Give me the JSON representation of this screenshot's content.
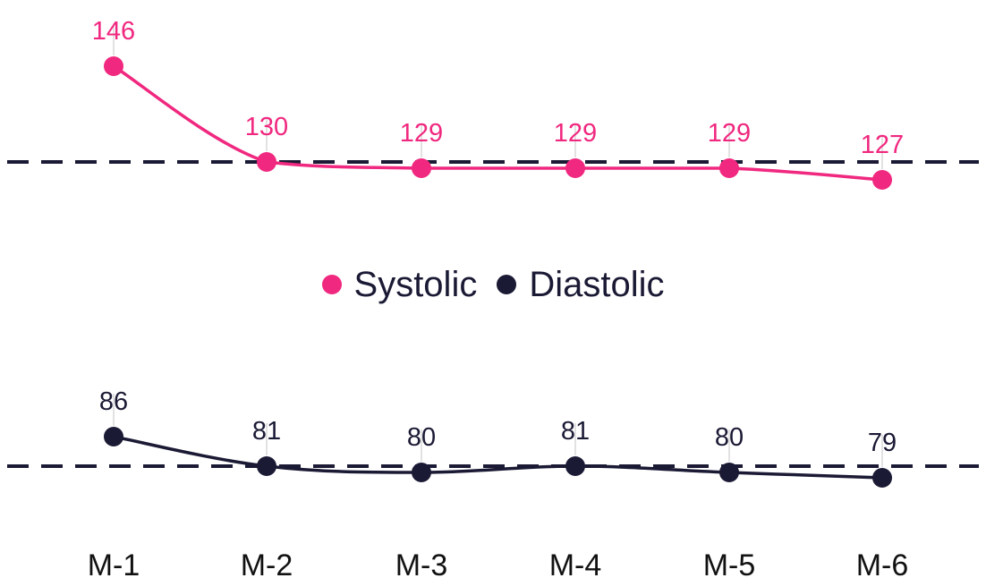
{
  "chart_data": {
    "type": "line",
    "categories": [
      "M-1",
      "M-2",
      "M-3",
      "M-4",
      "M-5",
      "M-6"
    ],
    "series": [
      {
        "name": "Systolic",
        "values": [
          146,
          130,
          129,
          129,
          129,
          127
        ],
        "color": "#f0287f",
        "reference": 130
      },
      {
        "name": "Diastolic",
        "values": [
          86,
          81,
          80,
          81,
          80,
          79
        ],
        "color": "#1b1a35",
        "reference": 81
      }
    ],
    "reference_line_style": "dashed",
    "legend_position": "center",
    "grid": false,
    "data_labels": true
  }
}
